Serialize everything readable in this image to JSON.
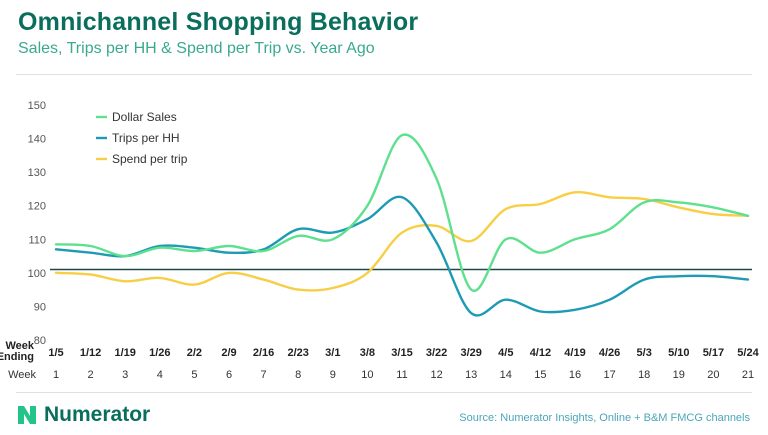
{
  "header": {
    "title": "Omnichannel Shopping Behavior",
    "subtitle": "Sales, Trips per HH & Spend per Trip vs. Year Ago"
  },
  "footer": {
    "brand": "Numerator",
    "source": "Source: Numerator Insights, Online + B&M  FMCG channels",
    "logo_icon": "numerator-logo-icon"
  },
  "chart_data": {
    "type": "line",
    "row_label_week_ending": "Week\nEnding",
    "row_label_week": "Week",
    "categories": [
      "1/5",
      "1/12",
      "1/19",
      "1/26",
      "2/2",
      "2/9",
      "2/16",
      "2/23",
      "3/1",
      "3/8",
      "3/15",
      "3/22",
      "3/29",
      "4/5",
      "4/12",
      "4/19",
      "4/26",
      "5/3",
      "5/10",
      "5/17",
      "5/24"
    ],
    "weeks": [
      "1",
      "2",
      "3",
      "4",
      "5",
      "6",
      "7",
      "8",
      "9",
      "10",
      "11",
      "12",
      "13",
      "14",
      "15",
      "16",
      "17",
      "18",
      "19",
      "20",
      "21"
    ],
    "ylim": [
      80,
      150
    ],
    "yticks": [
      80,
      90,
      100,
      110,
      120,
      130,
      140,
      150
    ],
    "reference_line": 101,
    "legend_position": "top-left",
    "series": [
      {
        "name": "Dollar Sales",
        "color": "#5fe08e",
        "values": [
          108.5,
          108,
          105,
          107.5,
          106.5,
          108,
          106.5,
          111,
          110,
          120,
          141,
          128,
          95,
          110,
          106,
          110,
          113,
          121,
          121,
          119.5,
          117
        ]
      },
      {
        "name": "Trips per HH",
        "color": "#1e9bb4",
        "values": [
          107,
          106,
          105,
          108,
          107.5,
          106,
          107,
          113,
          112,
          116,
          122.5,
          109,
          88,
          92,
          88.5,
          89,
          92,
          98,
          99,
          99,
          98
        ]
      },
      {
        "name": "Spend per trip",
        "color": "#f8ce45",
        "values": [
          100,
          99.5,
          97.5,
          98.5,
          96.5,
          100,
          98,
          95,
          95.5,
          100,
          112,
          114,
          109.5,
          119,
          120.5,
          124,
          122.5,
          122,
          119.5,
          117.5,
          117
        ]
      }
    ]
  }
}
